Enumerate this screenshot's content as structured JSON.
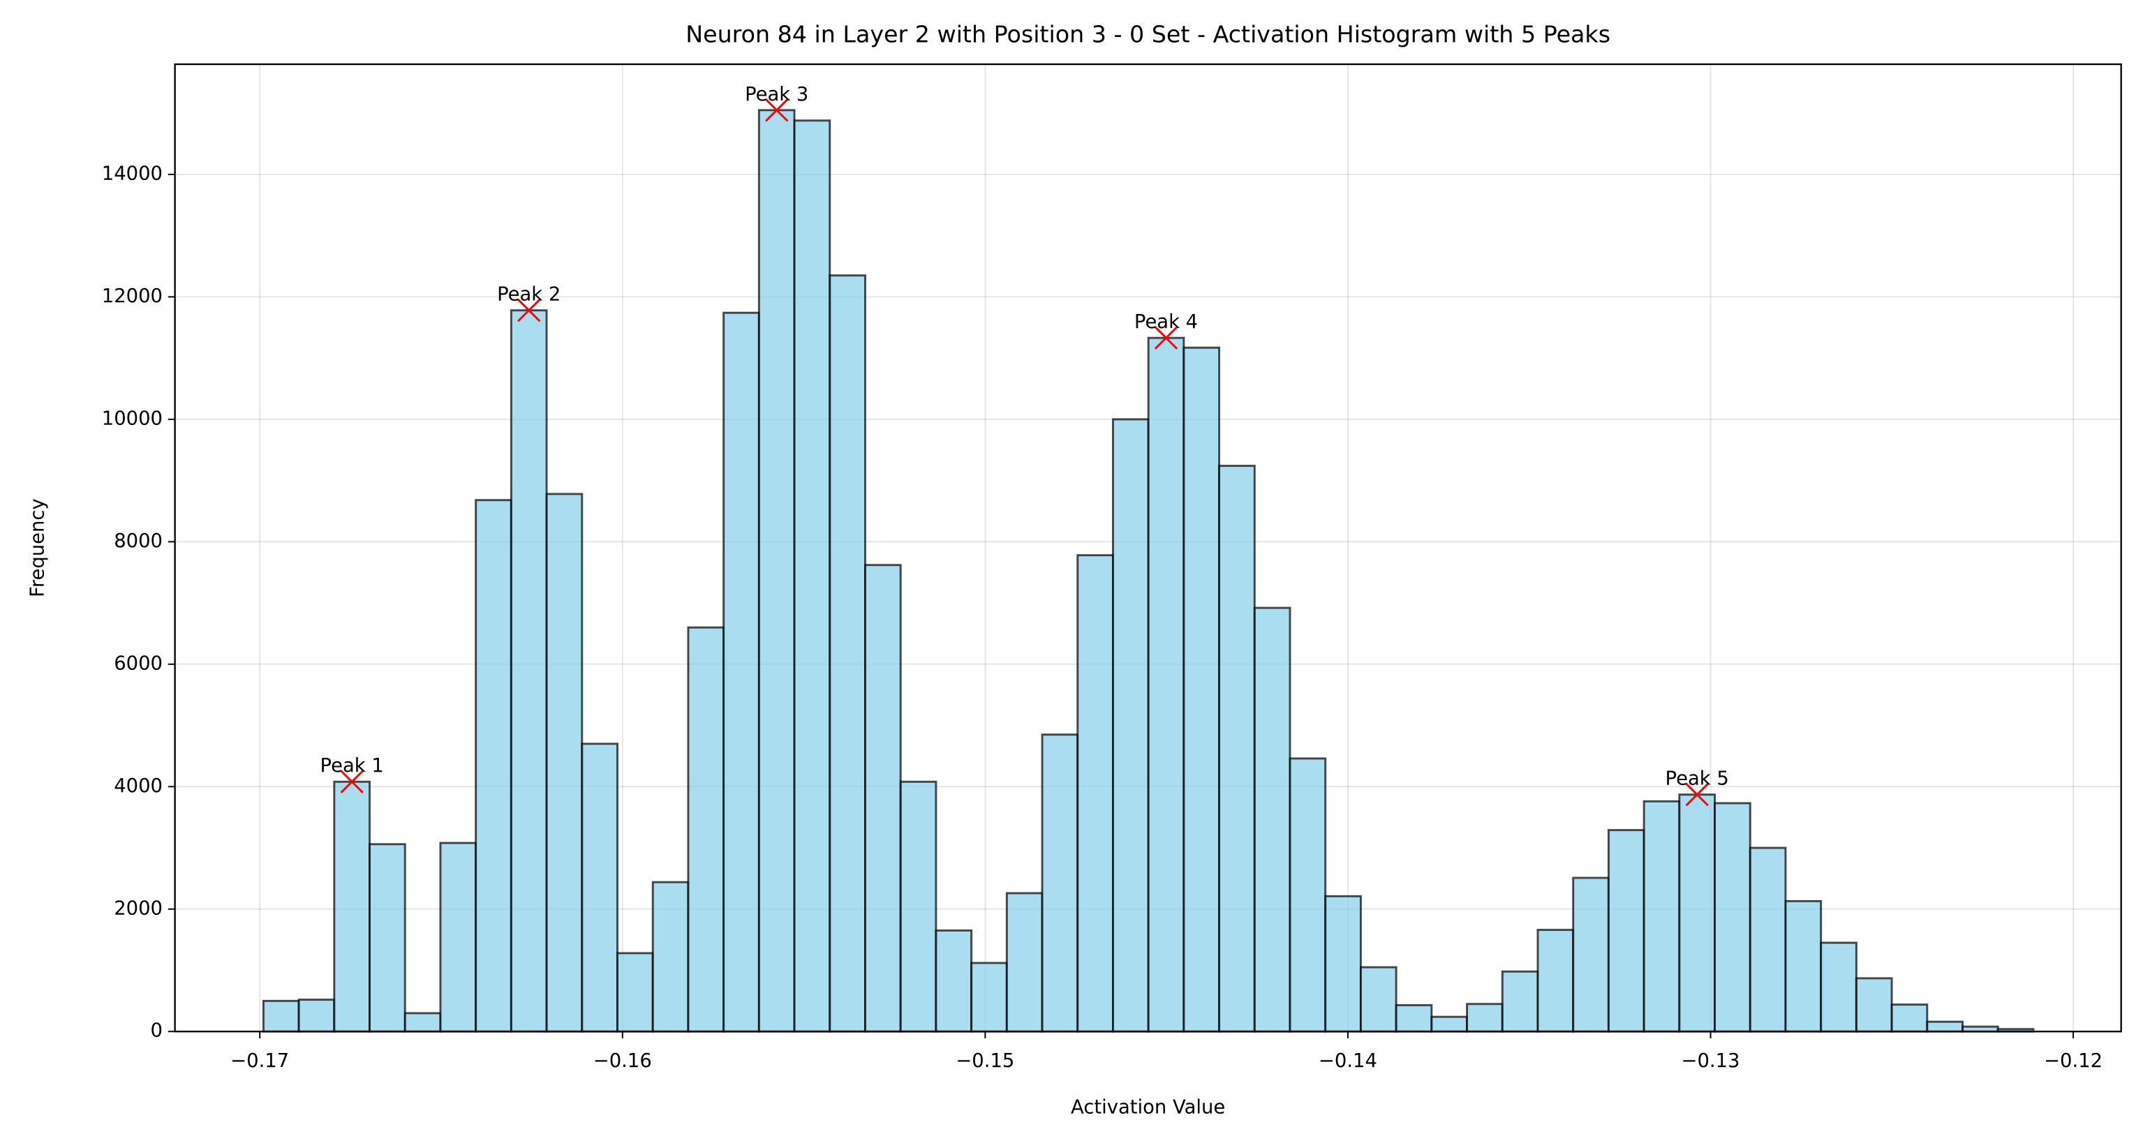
{
  "chart_data": {
    "type": "histogram",
    "title": "Neuron 84 in Layer 2 with Position 3 - 0 Set - Activation Histogram with 5 Peaks",
    "x_label": "Activation Value",
    "y_label": "Frequency",
    "color": "#87ceeb",
    "edge_color": "#000000",
    "peak_color": "#ff0000",
    "grid": true,
    "bins": [
      -0.1699,
      -0.168924,
      -0.167948,
      -0.166972,
      -0.165996,
      -0.16502,
      -0.164044,
      -0.163068,
      -0.162092,
      -0.161116,
      -0.16014,
      -0.159164,
      -0.158188,
      -0.157212,
      -0.156236,
      -0.15526,
      -0.154284,
      -0.153308,
      -0.152332,
      -0.151356,
      -0.15038,
      -0.149404,
      -0.148428,
      -0.147452,
      -0.146476,
      -0.1455,
      -0.144524,
      -0.143548,
      -0.142572,
      -0.141596,
      -0.14062,
      -0.139644,
      -0.138668,
      -0.137692,
      -0.136716,
      -0.13574,
      -0.134764,
      -0.133788,
      -0.132812,
      -0.131836,
      -0.13086,
      -0.129884,
      -0.128908,
      -0.127932,
      -0.126956,
      -0.12598,
      -0.125004,
      -0.124028,
      -0.123052,
      -0.122076,
      -0.1211
    ],
    "counts": [
      500,
      520,
      4080,
      3060,
      300,
      3080,
      8680,
      11780,
      8780,
      4700,
      1280,
      2440,
      6600,
      11740,
      15050,
      14880,
      12350,
      7620,
      4080,
      1650,
      1120,
      2260,
      4850,
      7780,
      10000,
      11330,
      11170,
      9240,
      6920,
      4460,
      2210,
      1050,
      430,
      240,
      450,
      980,
      1660,
      2510,
      3290,
      3760,
      3870,
      3730,
      3000,
      2130,
      1450,
      870,
      440,
      160,
      80,
      40
    ],
    "peaks": [
      {
        "label": "Peak 1",
        "x": -0.16746,
        "y": 4080
      },
      {
        "label": "Peak 2",
        "x": -0.16258,
        "y": 11780
      },
      {
        "label": "Peak 3",
        "x": -0.155748,
        "y": 15050
      },
      {
        "label": "Peak 4",
        "x": -0.145012,
        "y": 11330
      },
      {
        "label": "Peak 5",
        "x": -0.130372,
        "y": 3870
      }
    ],
    "xlim": [
      -0.17234,
      -0.11868
    ],
    "ylim": [
      0,
      15800
    ],
    "xticks": [
      {
        "value": -0.17,
        "label": "−0.17"
      },
      {
        "value": -0.16,
        "label": "−0.16"
      },
      {
        "value": -0.15,
        "label": "−0.15"
      },
      {
        "value": -0.14,
        "label": "−0.14"
      },
      {
        "value": -0.13,
        "label": "−0.13"
      },
      {
        "value": -0.12,
        "label": "−0.12"
      }
    ],
    "yticks": [
      0,
      2000,
      4000,
      6000,
      8000,
      10000,
      12000,
      14000
    ]
  }
}
